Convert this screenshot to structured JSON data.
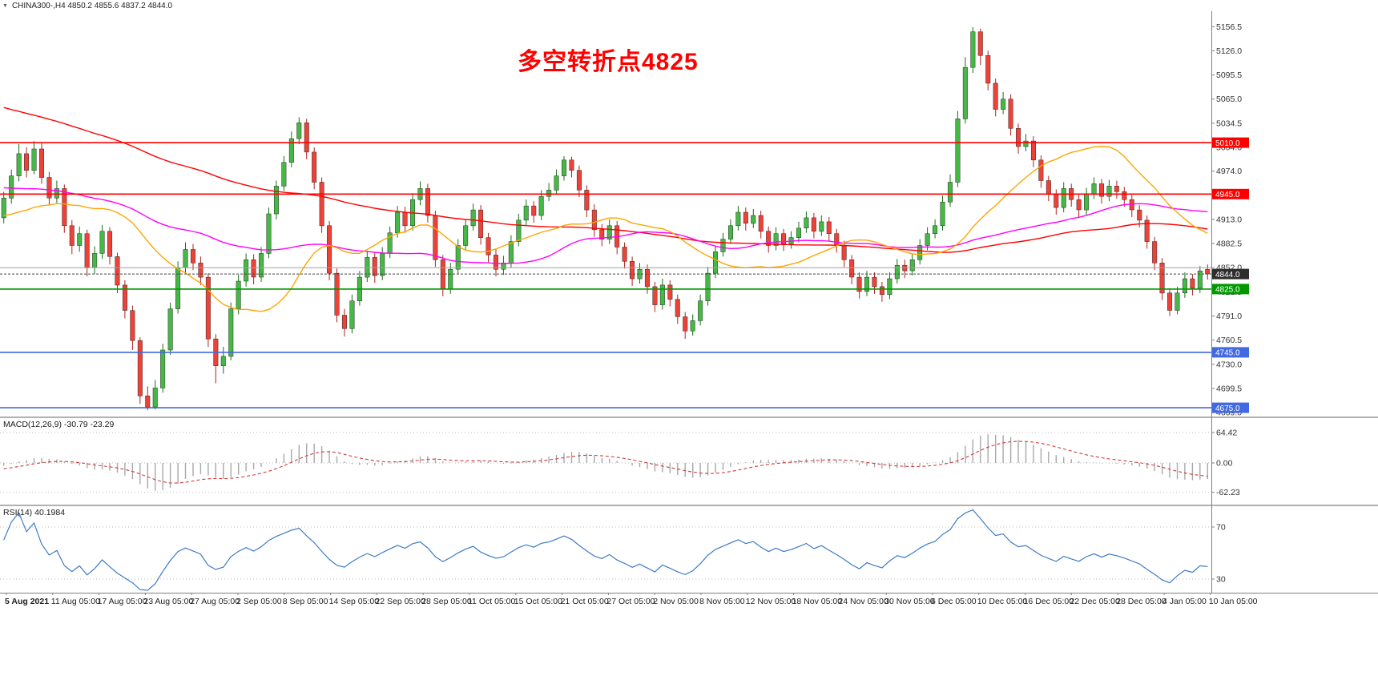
{
  "header": {
    "collapse_glyph": "▼",
    "symbol_info": "CHINA300-,H4 4850.2 4855.6 4837.2 4844.0"
  },
  "annotation": {
    "text": "多空转折点4825",
    "color": "#FF0000"
  },
  "chart_data": [
    {
      "type": "candlestick",
      "symbol": "CHINA300-",
      "timeframe": "H4",
      "ohlc_display": {
        "open": 4850.2,
        "high": 4855.6,
        "low": 4837.2,
        "close": 4844.0
      },
      "ylim": [
        4664,
        5176
      ],
      "y_ticks": [
        5156.5,
        5126.0,
        5095.5,
        5065.0,
        5034.5,
        5004.0,
        4974.0,
        4943.5,
        4913.0,
        4882.5,
        4852.0,
        4821.5,
        4791.0,
        4760.5,
        4730.0,
        4699.5,
        4669.0
      ],
      "x_labels": [
        "5 Aug 2021",
        "11 Aug 05:00",
        "17 Aug 05:00",
        "23 Aug 05:00",
        "27 Aug 05:00",
        "2 Sep 05:00",
        "8 Sep 05:00",
        "14 Sep 05:00",
        "22 Sep 05:00",
        "28 Sep 05:00",
        "11 Oct 05:00",
        "15 Oct 05:00",
        "21 Oct 05:00",
        "27 Oct 05:00",
        "2 Nov 05:00",
        "8 Nov 05:00",
        "12 Nov 05:00",
        "18 Nov 05:00",
        "24 Nov 05:00",
        "30 Nov 05:00",
        "6 Dec 05:00",
        "10 Dec 05:00",
        "16 Dec 05:00",
        "22 Dec 05:00",
        "28 Dec 05:00",
        "4 Jan 05:00",
        "10 Jan 05:00"
      ],
      "up_color": "#44b944",
      "down_color": "#ef4136",
      "candles": [
        [
          4915,
          4948,
          4908,
          4940
        ],
        [
          4940,
          4976,
          4933,
          4968
        ],
        [
          4968,
          5008,
          4961,
          4996
        ],
        [
          4996,
          5004,
          4966,
          4975
        ],
        [
          4975,
          5012,
          4970,
          5002
        ],
        [
          5002,
          5009,
          4958,
          4966
        ],
        [
          4966,
          4973,
          4931,
          4940
        ],
        [
          4940,
          4962,
          4934,
          4952
        ],
        [
          4952,
          4957,
          4896,
          4905
        ],
        [
          4905,
          4912,
          4869,
          4880
        ],
        [
          4880,
          4904,
          4872,
          4895
        ],
        [
          4895,
          4900,
          4841,
          4852
        ],
        [
          4852,
          4879,
          4844,
          4870
        ],
        [
          4870,
          4906,
          4863,
          4898
        ],
        [
          4898,
          4903,
          4856,
          4866
        ],
        [
          4866,
          4871,
          4820,
          4830
        ],
        [
          4830,
          4836,
          4788,
          4798
        ],
        [
          4798,
          4804,
          4748,
          4760
        ],
        [
          4760,
          4764,
          4680,
          4690
        ],
        [
          4690,
          4702,
          4672,
          4676
        ],
        [
          4676,
          4710,
          4673,
          4700
        ],
        [
          4700,
          4756,
          4694,
          4748
        ],
        [
          4748,
          4808,
          4742,
          4800
        ],
        [
          4800,
          4860,
          4794,
          4852
        ],
        [
          4852,
          4884,
          4846,
          4875
        ],
        [
          4875,
          4882,
          4849,
          4858
        ],
        [
          4858,
          4866,
          4830,
          4840
        ],
        [
          4840,
          4845,
          4752,
          4762
        ],
        [
          4762,
          4768,
          4706,
          4728
        ],
        [
          4728,
          4752,
          4718,
          4740
        ],
        [
          4740,
          4808,
          4735,
          4800
        ],
        [
          4800,
          4843,
          4793,
          4835
        ],
        [
          4835,
          4870,
          4828,
          4862
        ],
        [
          4862,
          4869,
          4831,
          4840
        ],
        [
          4840,
          4878,
          4834,
          4870
        ],
        [
          4870,
          4928,
          4864,
          4920
        ],
        [
          4920,
          4962,
          4913,
          4955
        ],
        [
          4955,
          4993,
          4949,
          4985
        ],
        [
          4985,
          5024,
          4979,
          5015
        ],
        [
          5015,
          5042,
          5008,
          5035
        ],
        [
          5035,
          5040,
          4989,
          4998
        ],
        [
          4998,
          5004,
          4951,
          4960
        ],
        [
          4960,
          4966,
          4896,
          4905
        ],
        [
          4905,
          4911,
          4836,
          4845
        ],
        [
          4845,
          4851,
          4783,
          4792
        ],
        [
          4792,
          4800,
          4765,
          4775
        ],
        [
          4775,
          4818,
          4769,
          4810
        ],
        [
          4810,
          4848,
          4804,
          4840
        ],
        [
          4840,
          4873,
          4834,
          4865
        ],
        [
          4865,
          4871,
          4833,
          4842
        ],
        [
          4842,
          4878,
          4836,
          4870
        ],
        [
          4870,
          4904,
          4864,
          4896
        ],
        [
          4896,
          4930,
          4890,
          4922
        ],
        [
          4922,
          4929,
          4896,
          4905
        ],
        [
          4905,
          4946,
          4899,
          4938
        ],
        [
          4938,
          4961,
          4931,
          4952
        ],
        [
          4952,
          4958,
          4909,
          4918
        ],
        [
          4918,
          4924,
          4853,
          4862
        ],
        [
          4862,
          4868,
          4816,
          4825
        ],
        [
          4825,
          4858,
          4819,
          4850
        ],
        [
          4850,
          4888,
          4844,
          4880
        ],
        [
          4880,
          4913,
          4874,
          4905
        ],
        [
          4905,
          4933,
          4899,
          4925
        ],
        [
          4925,
          4931,
          4881,
          4890
        ],
        [
          4890,
          4896,
          4859,
          4868
        ],
        [
          4868,
          4875,
          4841,
          4850
        ],
        [
          4850,
          4867,
          4843,
          4858
        ],
        [
          4858,
          4893,
          4852,
          4885
        ],
        [
          4885,
          4920,
          4879,
          4912
        ],
        [
          4912,
          4938,
          4905,
          4930
        ],
        [
          4930,
          4936,
          4909,
          4918
        ],
        [
          4918,
          4950,
          4912,
          4942
        ],
        [
          4942,
          4959,
          4936,
          4950
        ],
        [
          4950,
          4976,
          4944,
          4968
        ],
        [
          4968,
          4993,
          4962,
          4988
        ],
        [
          4988,
          4992,
          4966,
          4975
        ],
        [
          4975,
          4981,
          4941,
          4950
        ],
        [
          4950,
          4956,
          4916,
          4925
        ],
        [
          4925,
          4932,
          4891,
          4900
        ],
        [
          4900,
          4907,
          4879,
          4888
        ],
        [
          4888,
          4913,
          4882,
          4905
        ],
        [
          4905,
          4911,
          4869,
          4878
        ],
        [
          4878,
          4884,
          4851,
          4860
        ],
        [
          4860,
          4866,
          4829,
          4838
        ],
        [
          4838,
          4858,
          4832,
          4850
        ],
        [
          4850,
          4856,
          4819,
          4828
        ],
        [
          4828,
          4834,
          4796,
          4805
        ],
        [
          4805,
          4838,
          4799,
          4830
        ],
        [
          4830,
          4836,
          4803,
          4812
        ],
        [
          4812,
          4818,
          4781,
          4790
        ],
        [
          4790,
          4796,
          4762,
          4772
        ],
        [
          4772,
          4793,
          4766,
          4785
        ],
        [
          4785,
          4818,
          4779,
          4810
        ],
        [
          4810,
          4853,
          4804,
          4845
        ],
        [
          4845,
          4880,
          4839,
          4872
        ],
        [
          4872,
          4896,
          4866,
          4888
        ],
        [
          4888,
          4913,
          4882,
          4905
        ],
        [
          4905,
          4930,
          4899,
          4922
        ],
        [
          4922,
          4928,
          4899,
          4908
        ],
        [
          4908,
          4926,
          4902,
          4918
        ],
        [
          4918,
          4924,
          4889,
          4898
        ],
        [
          4898,
          4904,
          4871,
          4880
        ],
        [
          4880,
          4903,
          4874,
          4895
        ],
        [
          4895,
          4901,
          4873,
          4882
        ],
        [
          4882,
          4898,
          4876,
          4890
        ],
        [
          4890,
          4910,
          4884,
          4902
        ],
        [
          4902,
          4923,
          4896,
          4915
        ],
        [
          4915,
          4921,
          4889,
          4898
        ],
        [
          4898,
          4918,
          4892,
          4910
        ],
        [
          4910,
          4916,
          4886,
          4895
        ],
        [
          4895,
          4901,
          4871,
          4880
        ],
        [
          4880,
          4886,
          4853,
          4862
        ],
        [
          4862,
          4868,
          4831,
          4840
        ],
        [
          4840,
          4846,
          4813,
          4822
        ],
        [
          4822,
          4848,
          4816,
          4840
        ],
        [
          4840,
          4846,
          4819,
          4828
        ],
        [
          4828,
          4834,
          4809,
          4818
        ],
        [
          4818,
          4846,
          4812,
          4838
        ],
        [
          4838,
          4863,
          4832,
          4855
        ],
        [
          4855,
          4862,
          4839,
          4848
        ],
        [
          4848,
          4870,
          4842,
          4862
        ],
        [
          4862,
          4888,
          4856,
          4880
        ],
        [
          4880,
          4903,
          4874,
          4895
        ],
        [
          4895,
          4913,
          4889,
          4905
        ],
        [
          4905,
          4943,
          4899,
          4935
        ],
        [
          4935,
          4970,
          4929,
          4960
        ],
        [
          4960,
          5050,
          4954,
          5040
        ],
        [
          5040,
          5118,
          5034,
          5105
        ],
        [
          5105,
          5156,
          5098,
          5150
        ],
        [
          5150,
          5154,
          5108,
          5120
        ],
        [
          5120,
          5126,
          5076,
          5085
        ],
        [
          5085,
          5091,
          5043,
          5052
        ],
        [
          5052,
          5074,
          5046,
          5065
        ],
        [
          5065,
          5071,
          5019,
          5028
        ],
        [
          5028,
          5034,
          4996,
          5005
        ],
        [
          5005,
          5021,
          4999,
          5012
        ],
        [
          5012,
          5018,
          4979,
          4988
        ],
        [
          4988,
          4994,
          4953,
          4962
        ],
        [
          4962,
          4968,
          4936,
          4945
        ],
        [
          4945,
          4951,
          4919,
          4928
        ],
        [
          4928,
          4960,
          4922,
          4952
        ],
        [
          4952,
          4958,
          4929,
          4938
        ],
        [
          4938,
          4944,
          4916,
          4925
        ],
        [
          4925,
          4953,
          4919,
          4945
        ],
        [
          4945,
          4966,
          4939,
          4958
        ],
        [
          4958,
          4964,
          4933,
          4942
        ],
        [
          4942,
          4963,
          4936,
          4955
        ],
        [
          4955,
          4962,
          4939,
          4948
        ],
        [
          4948,
          4954,
          4929,
          4938
        ],
        [
          4938,
          4944,
          4916,
          4925
        ],
        [
          4925,
          4931,
          4903,
          4912
        ],
        [
          4912,
          4918,
          4876,
          4885
        ],
        [
          4885,
          4891,
          4849,
          4858
        ],
        [
          4858,
          4864,
          4811,
          4820
        ],
        [
          4820,
          4826,
          4791,
          4798
        ],
        [
          4798,
          4828,
          4793,
          4820
        ],
        [
          4820,
          4846,
          4814,
          4838
        ],
        [
          4838,
          4844,
          4817,
          4826
        ],
        [
          4826,
          4854,
          4820,
          4848
        ],
        [
          4850,
          4856,
          4837,
          4844
        ]
      ],
      "prehistory_closes": [
        5290,
        5285,
        5281,
        5276,
        5272,
        5267,
        5263,
        5258,
        5254,
        5249,
        5245,
        5240,
        5236,
        5231,
        5227,
        5222,
        5218,
        5213,
        5209,
        5204,
        5200,
        5195,
        5191,
        5186,
        5182,
        5177,
        5173,
        5168,
        5164,
        5160,
        5155,
        5150,
        5146,
        5141,
        5136,
        5131,
        5127,
        5122,
        5117,
        5112,
        5108,
        5103,
        5098,
        5093,
        5089,
        5084,
        5079,
        5074,
        5070,
        5065,
        5060,
        5055,
        5051,
        5046,
        5041,
        5036,
        5032,
        5027,
        5022,
        5020,
        5018,
        5016,
        5014,
        5012,
        5010,
        5008,
        5006,
        5004,
        5002,
        5000,
        4998,
        4996,
        4994,
        4992,
        4990,
        4988,
        4986,
        4984,
        4982,
        4980,
        4978,
        4976,
        4975,
        4974,
        4973,
        4972,
        4971,
        4970,
        4969,
        4968,
        4965,
        4962,
        4959,
        4956,
        4953,
        4950,
        4947,
        4944,
        4941,
        4938,
        4935,
        4932,
        4929,
        4926,
        4923,
        4920,
        4917,
        4914,
        4911,
        4908,
        4902,
        4898,
        4896,
        4900,
        4906,
        4912,
        4918,
        4924,
        4929,
        4934
      ],
      "moving_averages": [
        {
          "name": "slow",
          "period": 120,
          "color": "#FF0000"
        },
        {
          "name": "medium",
          "period": 55,
          "color": "#FF00FF"
        },
        {
          "name": "fast",
          "period": 21,
          "color": "#FFA500"
        }
      ],
      "horizontal_levels": [
        {
          "price": 5010.0,
          "label": "5010.0",
          "color": "#FF0000"
        },
        {
          "price": 4945.0,
          "label": "4945.0",
          "color": "#FF0000"
        },
        {
          "price": 4852.0,
          "label": "",
          "color": "#a0a0a0"
        },
        {
          "price": 4825.0,
          "label": "4825.0",
          "color": "#009a00"
        },
        {
          "price": 4745.0,
          "label": "4745.0",
          "color": "#4169E1"
        },
        {
          "price": 4675.0,
          "label": "4675.0",
          "color": "#4169E1"
        }
      ],
      "current_price": {
        "value": 4844.0,
        "label": "4844.0",
        "badge_color": "#2e2e2e"
      }
    },
    {
      "type": "macd",
      "label": "MACD(12,26,9)",
      "values_text": "-30.79 -23.29",
      "params": {
        "fast": 12,
        "slow": 26,
        "signal": 9
      },
      "y_ticks": [
        64.42,
        0.0,
        -62.23
      ],
      "histogram_color": "#a8a8a8",
      "signal_color": "#d03a3a"
    },
    {
      "type": "rsi",
      "label": "RSI(14)",
      "value": "40.1984",
      "period": 14,
      "levels": [
        70,
        30
      ],
      "line_color": "#3E7BC4"
    }
  ]
}
